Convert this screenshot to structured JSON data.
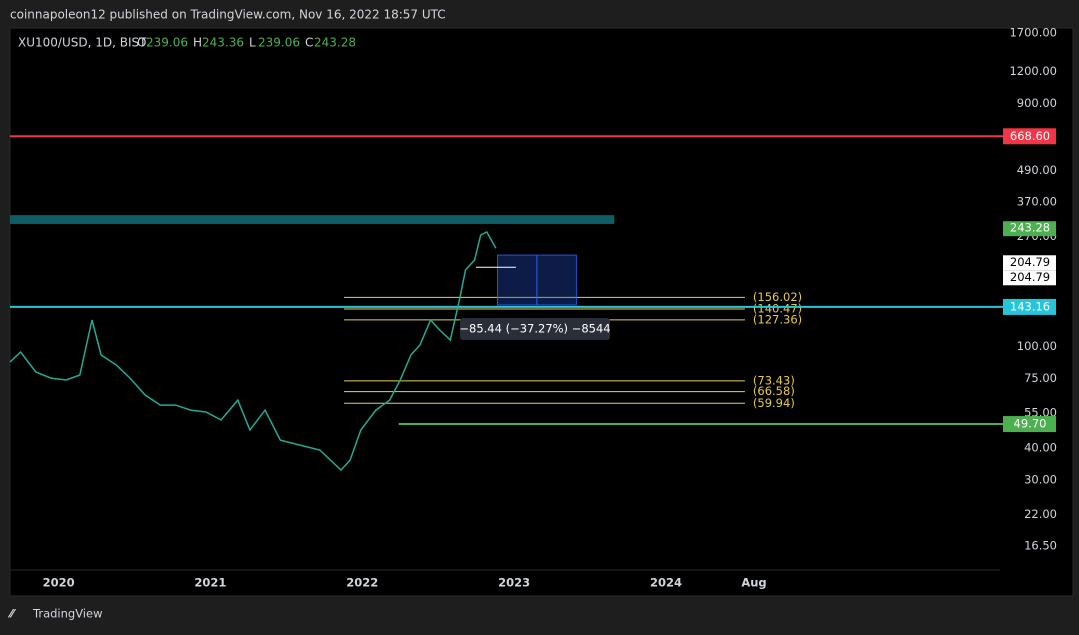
{
  "header": {
    "publisher": "coinnapoleon12 published on TradingView.com, Nov 16, 2022 18:57 UTC",
    "symbol": "XU100/USD, 1D, BIST",
    "ohlc": [
      {
        "key": "O",
        "value": "239.06"
      },
      {
        "key": "H",
        "value": "243.36"
      },
      {
        "key": "L",
        "value": "239.06"
      },
      {
        "key": "C",
        "value": "243.28"
      }
    ],
    "footer": "TradingView"
  },
  "chart_data": {
    "type": "line",
    "log_scale": true,
    "color": "#22ab94",
    "x": [
      2019.68,
      2019.75,
      2019.85,
      2019.95,
      2020.05,
      2020.14,
      2020.22,
      2020.28,
      2020.38,
      2020.47,
      2020.57,
      2020.67,
      2020.77,
      2020.87,
      2020.97,
      2021.07,
      2021.18,
      2021.26,
      2021.36,
      2021.46,
      2021.59,
      2021.72,
      2021.86,
      2021.92,
      2021.99,
      2022.09,
      2022.18,
      2022.25,
      2022.32,
      2022.38,
      2022.45,
      2022.51,
      2022.58,
      2022.64,
      2022.68,
      2022.74,
      2022.78,
      2022.82,
      2022.88
    ],
    "values": [
      87.0,
      95.3,
      79.5,
      75.3,
      74.0,
      77.4,
      127.2,
      92.7,
      84.7,
      75.3,
      64.6,
      59.0,
      59.0,
      56.4,
      55.4,
      51.6,
      61.7,
      47.1,
      56.4,
      43.0,
      41.1,
      39.3,
      32.8,
      35.9,
      47.1,
      56.4,
      61.7,
      74.0,
      92.7,
      101.5,
      127.2,
      116.2,
      106.2,
      152.4,
      199.8,
      218.8,
      274.1,
      281.7,
      243.28
    ],
    "xlim": [
      2019.68,
      2026.2
    ],
    "xticks": [
      2020,
      2021,
      2022,
      2023,
      2024,
      {
        "value": 2024.58,
        "label": "Aug"
      }
    ],
    "ylim": [
      13.3,
      1778
    ],
    "yticks": [
      {
        "value": 1700,
        "label": "1700.00"
      },
      {
        "value": 1200,
        "label": "1200.00"
      },
      {
        "value": 900,
        "label": "900.00"
      },
      {
        "value": 490,
        "label": "490.00"
      },
      {
        "value": 370,
        "label": "370.00"
      },
      {
        "value": 270,
        "label": "270.00"
      },
      {
        "value": 100,
        "label": "100.00"
      },
      {
        "value": 75,
        "label": "75.00"
      },
      {
        "value": 55,
        "label": "55.00"
      },
      {
        "value": 40,
        "label": "40.00"
      },
      {
        "value": 30,
        "label": "30.00"
      },
      {
        "value": 22,
        "label": "22.00"
      },
      {
        "value": 16.5,
        "label": "16.50"
      }
    ],
    "levels": [
      {
        "value": 668.6,
        "label": "668.60",
        "color": "#f23645",
        "x0": 2019.68
      },
      {
        "value": 143.16,
        "label": "143.16",
        "color": "#26c6da",
        "x0": 2019.68
      },
      {
        "value": 49.7,
        "label": "49.70",
        "color": "#4caf50",
        "x0": 2022.24
      }
    ],
    "price_labels": [
      {
        "value": 243.28,
        "label": "243.28",
        "color": "#4caf50"
      },
      {
        "value": 204.79,
        "label": "204.79",
        "color": "#ffffff"
      },
      {
        "value": 204.79,
        "label": "204.79",
        "color": "#ffffff"
      }
    ],
    "fib_x": [
      2021.88,
      2024.52
    ],
    "fib_levels": [
      {
        "value": 156.02,
        "label": "(156.02)"
      },
      {
        "value": 140.47,
        "label": "(140.47)"
      },
      {
        "value": 127.36,
        "label": "(127.36)"
      },
      {
        "value": 73.43,
        "label": "(73.43)"
      },
      {
        "value": 66.58,
        "label": "(66.58)"
      },
      {
        "value": 59.94,
        "label": "(59.94)"
      }
    ],
    "zone": {
      "xlim": [
        2019.68,
        2023.66
      ],
      "ylim": [
        303,
        328
      ]
    },
    "measure": {
      "x": [
        2022.89,
        2023.41
      ],
      "y": [
        228.7,
        145.7
      ],
      "label": "−85.44 (−37.27%) −8544"
    }
  }
}
